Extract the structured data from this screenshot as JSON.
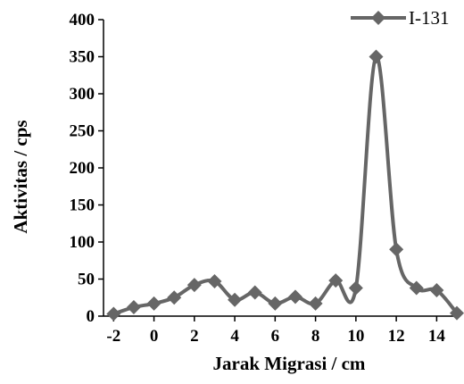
{
  "chart_data": {
    "type": "line",
    "xlabel": "Jarak Migrasi / cm",
    "ylabel": "Aktivitas / cps",
    "xlim": [
      -2.5,
      15
    ],
    "ylim": [
      0,
      400
    ],
    "x_ticks": [
      -2,
      0,
      2,
      4,
      6,
      8,
      10,
      12,
      14
    ],
    "y_ticks": [
      0,
      50,
      100,
      150,
      200,
      250,
      300,
      350,
      400
    ],
    "x_tick_labels": [
      "-2",
      "0",
      "2",
      "4",
      "6",
      "8",
      "10",
      "12",
      "14"
    ],
    "y_tick_labels": [
      "0",
      "50",
      "100",
      "150",
      "200",
      "250",
      "300",
      "350",
      "400"
    ],
    "grid": false,
    "legend_position": "top-right",
    "series": [
      {
        "name": "I-131",
        "color": "#666666",
        "marker": "diamond",
        "smooth": true,
        "x": [
          -2,
          -1,
          0,
          1,
          2,
          3,
          4,
          5,
          6,
          7,
          8,
          9,
          10,
          11,
          12,
          13,
          14,
          15
        ],
        "y": [
          3,
          12,
          17,
          25,
          42,
          47,
          22,
          32,
          17,
          26,
          17,
          48,
          38,
          350,
          90,
          38,
          35,
          4
        ]
      }
    ]
  }
}
